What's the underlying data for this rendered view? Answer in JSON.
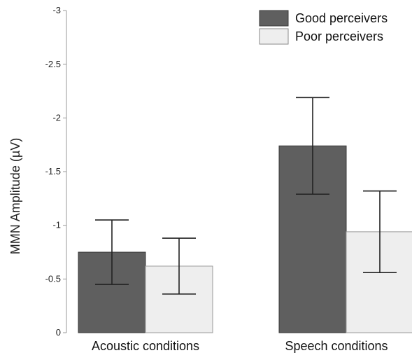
{
  "chart_data": {
    "type": "bar",
    "title": "",
    "xlabel": "",
    "ylabel": "MMN Amplitude (µV)",
    "ylim": [
      0,
      -3
    ],
    "y_inverted": true,
    "yticks": [
      "0",
      "-0.5",
      "-1",
      "-1.5",
      "-2",
      "-2.5",
      "-3"
    ],
    "ytick_values": [
      0,
      -0.5,
      -1,
      -1.5,
      -2,
      -2.5,
      -3
    ],
    "categories": [
      "Acoustic conditions",
      "Speech conditions"
    ],
    "series": [
      {
        "name": "Good perceivers",
        "color": "#5f5f5f",
        "values": [
          -0.75,
          -1.74
        ],
        "error": [
          0.3,
          0.45
        ]
      },
      {
        "name": "Poor perceivers",
        "color": "#eeeeee",
        "values": [
          -0.62,
          -0.94
        ],
        "error": [
          0.26,
          0.38
        ]
      }
    ],
    "legend_position": "top-right",
    "grid": false
  }
}
